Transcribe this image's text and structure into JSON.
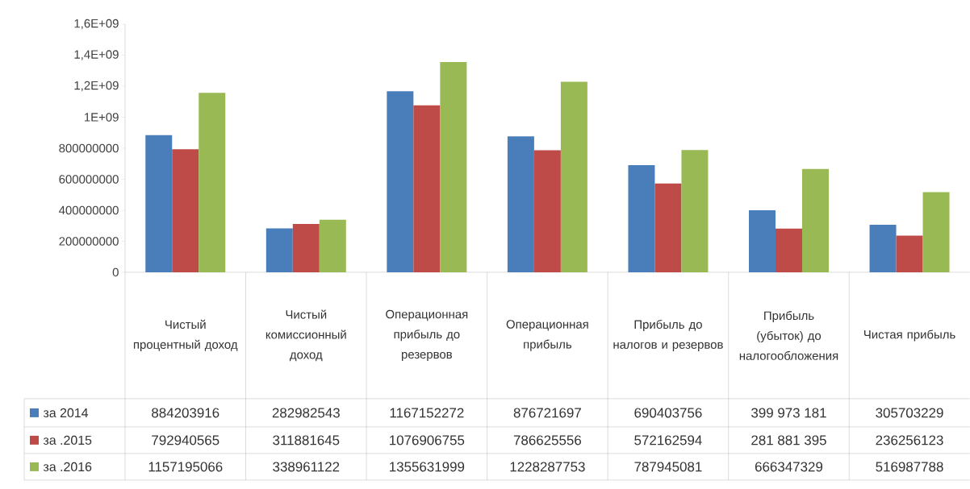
{
  "chart_data": {
    "type": "bar",
    "categories": [
      "Чистый процентный доход",
      "Чистый комиссионный доход",
      "Операционная прибыль до резервов",
      "Операционная прибыль",
      "Прибыль до налогов и резервов",
      "Прибыль (убыток) до налогообложения",
      "Чистая прибыль"
    ],
    "series": [
      {
        "name": "за 2014",
        "color": "#4a7ebb",
        "values": [
          884203916,
          282982543,
          1167152272,
          876721697,
          690403756,
          399973181,
          305703229
        ],
        "value_labels": [
          "884203916",
          "282982543",
          "1167152272",
          "876721697",
          "690403756",
          "399 973 181",
          "305703229"
        ]
      },
      {
        "name": "за .2015",
        "color": "#be4b48",
        "values": [
          792940565,
          311881645,
          1076906755,
          786625556,
          572162594,
          281881395,
          236256123
        ],
        "value_labels": [
          "792940565",
          "311881645",
          "1076906755",
          "786625556",
          "572162594",
          "281 881 395",
          "236256123"
        ]
      },
      {
        "name": "за .2016",
        "color": "#98b954",
        "values": [
          1157195066,
          338961122,
          1355631999,
          1228287753,
          787945081,
          666347329,
          516987788
        ],
        "value_labels": [
          "1157195066",
          "338961122",
          "1355631999",
          "1228287753",
          "787945081",
          "666347329",
          "516987788"
        ]
      }
    ],
    "ylim": [
      0,
      1600000000
    ],
    "yticks": [
      0,
      200000000,
      400000000,
      600000000,
      800000000,
      {
        "value": 1000000000,
        "label": "1E+09"
      },
      {
        "value": 1200000000,
        "label": "1,2E+09"
      },
      {
        "value": 1400000000,
        "label": "1,4E+09"
      },
      {
        "value": 1600000000,
        "label": "1,6E+09"
      }
    ],
    "legend": "bottom"
  }
}
